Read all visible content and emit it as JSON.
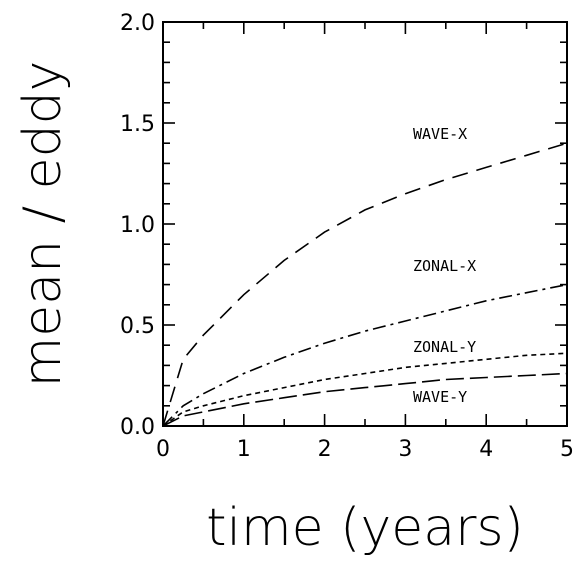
{
  "chart_data": {
    "type": "line",
    "title": "",
    "xlabel": "time (years)",
    "ylabel": "mean / eddy",
    "xlim": [
      0,
      5
    ],
    "ylim": [
      0,
      2
    ],
    "x_ticks": [
      "0",
      "1",
      "2",
      "3",
      "4",
      "5"
    ],
    "y_ticks": [
      "0.0",
      "0.5",
      "1.0",
      "1.5",
      "2.0"
    ],
    "grid": false,
    "x": [
      0,
      0.25,
      0.5,
      1,
      1.5,
      2,
      2.5,
      3,
      3.5,
      4,
      4.5,
      5
    ],
    "series": [
      {
        "name": "WAVE-X",
        "dash": "long",
        "values": [
          0,
          0.33,
          0.45,
          0.65,
          0.82,
          0.96,
          1.07,
          1.15,
          1.22,
          1.28,
          1.34,
          1.4
        ]
      },
      {
        "name": "ZONAL-X",
        "dash": "dashdot",
        "values": [
          0,
          0.1,
          0.16,
          0.26,
          0.34,
          0.41,
          0.47,
          0.52,
          0.57,
          0.62,
          0.66,
          0.7
        ]
      },
      {
        "name": "ZONAL-Y",
        "dash": "short",
        "values": [
          0,
          0.07,
          0.1,
          0.15,
          0.19,
          0.23,
          0.26,
          0.29,
          0.31,
          0.33,
          0.35,
          0.36
        ]
      },
      {
        "name": "WAVE-Y",
        "dash": "medium",
        "values": [
          0,
          0.05,
          0.07,
          0.11,
          0.14,
          0.17,
          0.19,
          0.21,
          0.23,
          0.24,
          0.25,
          0.26
        ]
      }
    ]
  }
}
